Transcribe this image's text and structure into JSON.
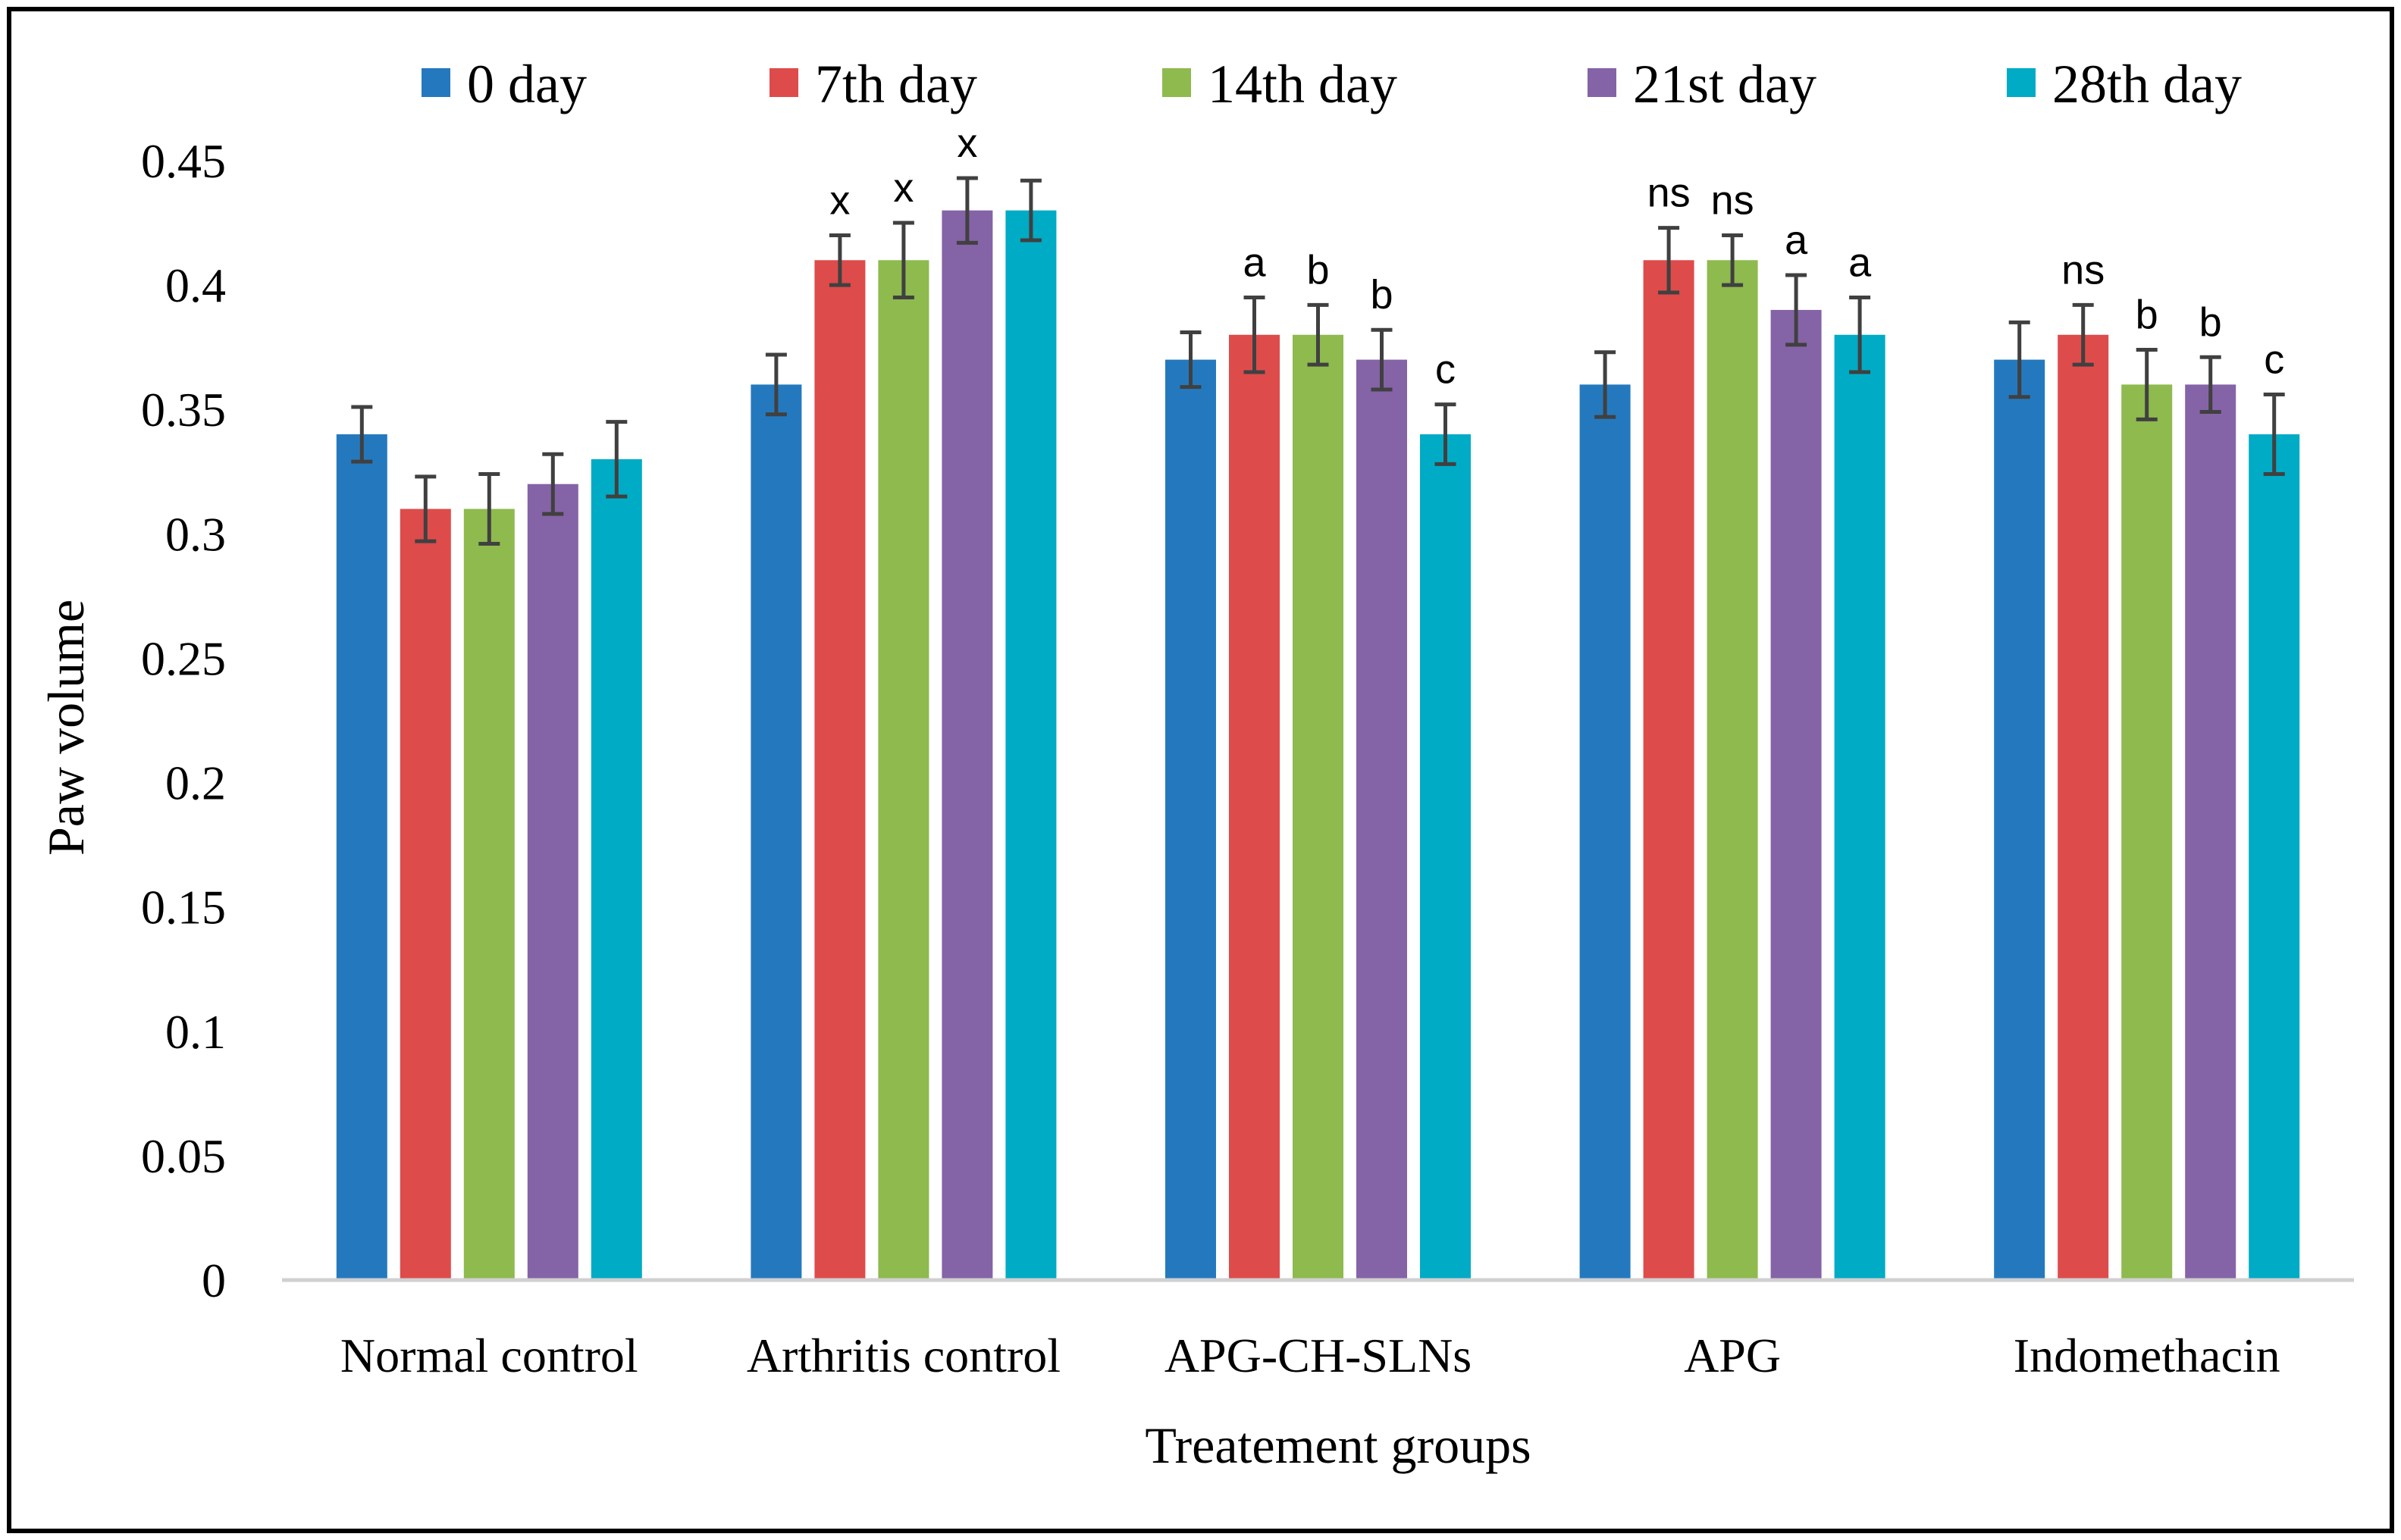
{
  "chart_data": {
    "type": "bar",
    "xlabel": "Treatement groups",
    "ylabel": "Paw volume",
    "ylim": [
      0,
      0.45
    ],
    "yticks": [
      "0",
      "0.05",
      "0.1",
      "0.15",
      "0.2",
      "0.25",
      "0.3",
      "0.35",
      "0.4",
      "0.45"
    ],
    "ytick_values": [
      0,
      0.05,
      0.1,
      0.15,
      0.2,
      0.25,
      0.3,
      0.35,
      0.4,
      0.45
    ],
    "grid": false,
    "legend_position": "top",
    "categories": [
      "Normal control",
      "Arthritis control",
      "APG-CH-SLNs",
      "APG",
      "Indomethacin"
    ],
    "series": [
      {
        "name": "0 day",
        "color": "#2479BE",
        "values": [
          0.34,
          0.36,
          0.37,
          0.36,
          0.37
        ],
        "errors": [
          0.011,
          0.012,
          0.011,
          0.013,
          0.015
        ],
        "annotations": [
          "",
          "",
          "",
          "",
          ""
        ]
      },
      {
        "name": "7th day",
        "color": "#DE4B4B",
        "values": [
          0.31,
          0.41,
          0.38,
          0.41,
          0.38
        ],
        "errors": [
          0.013,
          0.01,
          0.015,
          0.013,
          0.012
        ],
        "annotations": [
          "",
          "x",
          "a",
          "ns",
          "ns"
        ]
      },
      {
        "name": "14th day",
        "color": "#8EBA4E",
        "values": [
          0.31,
          0.41,
          0.38,
          0.41,
          0.36
        ],
        "errors": [
          0.014,
          0.015,
          0.012,
          0.01,
          0.014
        ],
        "annotations": [
          "",
          "x",
          "b",
          "ns",
          "b"
        ]
      },
      {
        "name": "21st day",
        "color": "#8563A7",
        "values": [
          0.32,
          0.43,
          0.37,
          0.39,
          0.36
        ],
        "errors": [
          0.012,
          0.013,
          0.012,
          0.014,
          0.011
        ],
        "annotations": [
          "",
          "x",
          "b",
          "a",
          "b"
        ]
      },
      {
        "name": "28th day",
        "color": "#00ABC5",
        "values": [
          0.33,
          0.43,
          0.34,
          0.38,
          0.34
        ],
        "errors": [
          0.015,
          0.012,
          0.012,
          0.015,
          0.016
        ],
        "annotations": [
          "",
          "",
          "c",
          "a",
          "c"
        ]
      }
    ]
  }
}
